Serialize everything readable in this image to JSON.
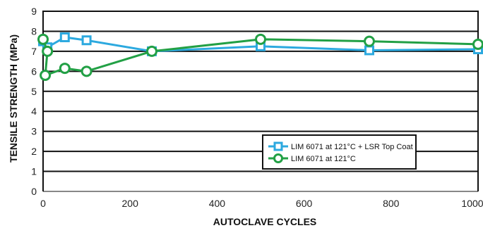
{
  "chart_data": {
    "type": "line",
    "title": "",
    "xlabel": "AUTOCLAVE CYCLES",
    "ylabel": "TENSILE STRENGTH (MPa)",
    "xlim": [
      0,
      1000
    ],
    "ylim": [
      0,
      9
    ],
    "xticks": [
      "0",
      "200",
      "400",
      "600",
      "800",
      "1000"
    ],
    "yticks": [
      "0",
      "1",
      "2",
      "3",
      "4",
      "5",
      "6",
      "7",
      "8",
      "9"
    ],
    "grid": true,
    "legend_position": "bottom-right",
    "series": [
      {
        "name": "LIM 6071 at 121°C + LSR Top Coat",
        "color": "#2ca9df",
        "marker": "square",
        "x": [
          0,
          10,
          50,
          100,
          250,
          500,
          750,
          1000
        ],
        "y": [
          7.5,
          7.2,
          7.7,
          7.55,
          7.0,
          7.25,
          7.05,
          7.1
        ]
      },
      {
        "name": "LIM 6071 at 121°C",
        "color": "#22a045",
        "marker": "circle",
        "x": [
          0,
          10,
          5,
          50,
          100,
          250,
          500,
          750,
          1000
        ],
        "y": [
          7.6,
          7.0,
          5.8,
          6.15,
          6.0,
          7.0,
          7.6,
          7.5,
          7.35
        ]
      }
    ]
  }
}
